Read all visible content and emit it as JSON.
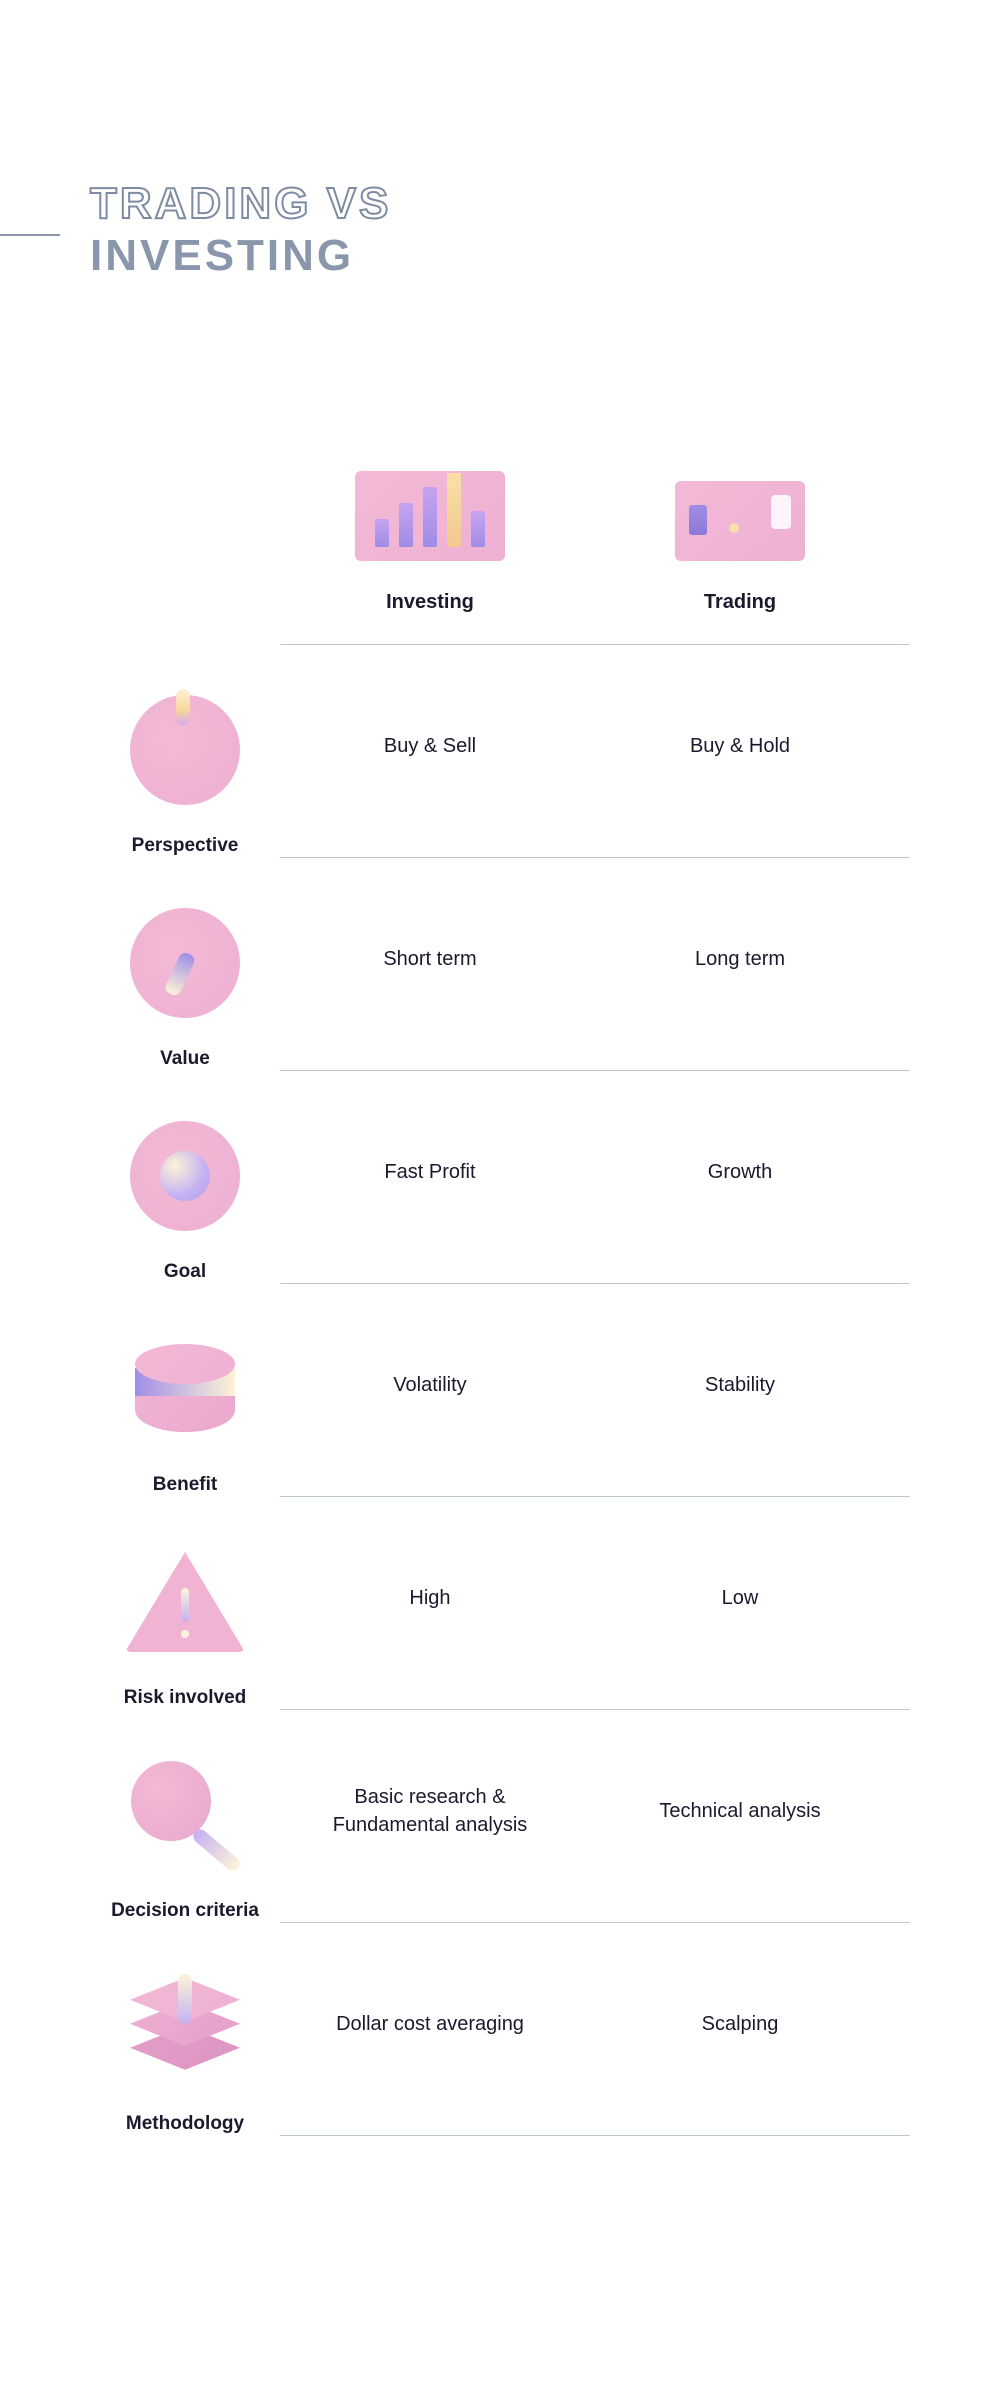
{
  "title": {
    "line1": "TRADING VS",
    "line2": "INVESTING"
  },
  "colors": {
    "title_outline": "#7e8ca3",
    "title_solid": "#8a96ab",
    "divider": "#8a96ab",
    "icon_pink_a": "#f3b9d6",
    "icon_pink_b": "#eeb0d3",
    "icon_purple": "#a08de6",
    "icon_cream": "#fef3d7",
    "text": "#1a1a2e",
    "background": "#ffffff"
  },
  "columns": {
    "col1": "Investing",
    "col2": "Trading"
  },
  "rows": [
    {
      "label": "Perspective",
      "investing": "Buy & Sell",
      "trading": "Buy & Hold",
      "icon": "circle-spark"
    },
    {
      "label": "Value",
      "investing": "Short term",
      "trading": "Long term",
      "icon": "circle-value"
    },
    {
      "label": "Goal",
      "investing": "Fast Profit",
      "trading": "Growth",
      "icon": "circle-goal"
    },
    {
      "label": "Benefit",
      "investing": "Volatility",
      "trading": "Stability",
      "icon": "cylinder"
    },
    {
      "label": "Risk involved",
      "investing": "High",
      "trading": "Low",
      "icon": "triangle"
    },
    {
      "label": "Decision criteria",
      "investing": "Basic research & Fundamental analysis",
      "trading": "Technical analysis",
      "icon": "magnify"
    },
    {
      "label": "Methodology",
      "investing": "Dollar cost averaging",
      "trading": "Scalping",
      "icon": "layers"
    }
  ],
  "fontsizes": {
    "title": 44,
    "header_label": 20,
    "row_label": 19,
    "cell": 20
  }
}
